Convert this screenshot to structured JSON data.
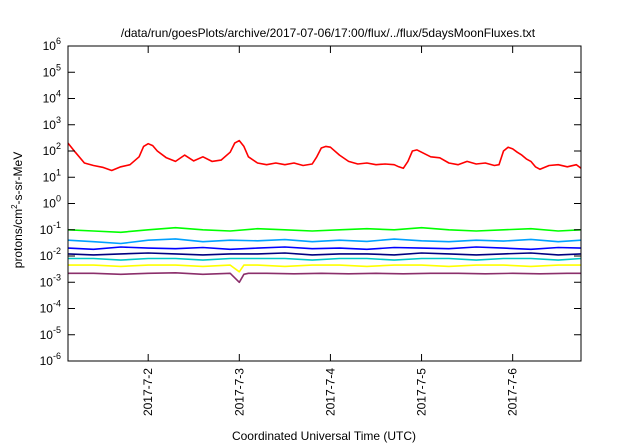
{
  "chart_data": {
    "type": "line",
    "title": "/data/run/goesPlots/archive/2017-07-06/17:00/flux/../flux/5daysMoonFluxes.txt",
    "xlabel": "Coordinated Universal Time (UTC)",
    "ylabel": "protons/cm2-s-sr-MeV",
    "ylabel_parts": {
      "base": "protons/cm",
      "sup": "2",
      "rest": "-s-sr-MeV"
    },
    "y_scale": "log",
    "ylim": [
      "1e-6",
      "1e6"
    ],
    "y_tick_labels": [
      {
        "base": "10",
        "exp": "-6"
      },
      {
        "base": "10",
        "exp": "-5"
      },
      {
        "base": "10",
        "exp": "-4"
      },
      {
        "base": "10",
        "exp": "-3"
      },
      {
        "base": "10",
        "exp": "-2"
      },
      {
        "base": "10",
        "exp": "-1"
      },
      {
        "base": "10",
        "exp": "0"
      },
      {
        "base": "10",
        "exp": "1"
      },
      {
        "base": "10",
        "exp": "2"
      },
      {
        "base": "10",
        "exp": "3"
      },
      {
        "base": "10",
        "exp": "4"
      },
      {
        "base": "10",
        "exp": "5"
      },
      {
        "base": "10",
        "exp": "6"
      }
    ],
    "x_range_days": [
      1.12,
      6.75
    ],
    "x_ticks": [
      {
        "label": "2017-7-2",
        "day": 2
      },
      {
        "label": "2017-7-3",
        "day": 3
      },
      {
        "label": "2017-7-4",
        "day": 4
      },
      {
        "label": "2017-7-5",
        "day": 5
      },
      {
        "label": "2017-7-6",
        "day": 6
      }
    ],
    "grid": false,
    "legend": "none",
    "series": [
      {
        "color": "#ff0000",
        "x": [
          1.12,
          1.2,
          1.3,
          1.4,
          1.5,
          1.6,
          1.7,
          1.8,
          1.9,
          1.95,
          2.0,
          2.05,
          2.1,
          2.2,
          2.3,
          2.4,
          2.5,
          2.6,
          2.7,
          2.8,
          2.9,
          2.95,
          3.0,
          3.05,
          3.1,
          3.2,
          3.3,
          3.4,
          3.5,
          3.6,
          3.7,
          3.8,
          3.85,
          3.9,
          3.95,
          4.0,
          4.1,
          4.2,
          4.3,
          4.4,
          4.5,
          4.6,
          4.7,
          4.75,
          4.8,
          4.85,
          4.9,
          4.95,
          5.0,
          5.1,
          5.2,
          5.3,
          5.4,
          5.5,
          5.6,
          5.7,
          5.8,
          5.85,
          5.9,
          5.95,
          6.0,
          6.05,
          6.1,
          6.15,
          6.2,
          6.25,
          6.3,
          6.4,
          6.5,
          6.6,
          6.7,
          6.75
        ],
        "y": [
          200,
          90,
          35,
          28,
          24,
          18,
          25,
          30,
          60,
          150,
          190,
          160,
          100,
          55,
          40,
          70,
          42,
          60,
          40,
          45,
          90,
          200,
          250,
          150,
          60,
          35,
          30,
          35,
          30,
          35,
          28,
          32,
          60,
          130,
          150,
          140,
          70,
          40,
          32,
          35,
          30,
          32,
          30,
          25,
          22,
          40,
          100,
          110,
          90,
          60,
          55,
          35,
          30,
          40,
          32,
          35,
          28,
          30,
          100,
          140,
          120,
          90,
          70,
          50,
          40,
          25,
          20,
          28,
          30,
          25,
          30,
          22
        ]
      },
      {
        "color": "#00ff00",
        "x": [
          1.12,
          1.4,
          1.7,
          2.0,
          2.3,
          2.6,
          2.9,
          3.2,
          3.5,
          3.8,
          4.1,
          4.4,
          4.7,
          5.0,
          5.3,
          5.6,
          5.9,
          6.2,
          6.5,
          6.75
        ],
        "y": [
          0.1,
          0.09,
          0.08,
          0.1,
          0.12,
          0.1,
          0.09,
          0.11,
          0.1,
          0.09,
          0.1,
          0.11,
          0.1,
          0.12,
          0.1,
          0.09,
          0.1,
          0.11,
          0.09,
          0.1
        ]
      },
      {
        "color": "#00a0ff",
        "x": [
          1.12,
          1.4,
          1.7,
          2.0,
          2.3,
          2.6,
          2.9,
          3.2,
          3.5,
          3.8,
          4.1,
          4.4,
          4.7,
          5.0,
          5.3,
          5.6,
          5.9,
          6.2,
          6.5,
          6.75
        ],
        "y": [
          0.04,
          0.035,
          0.03,
          0.04,
          0.045,
          0.035,
          0.04,
          0.038,
          0.042,
          0.035,
          0.04,
          0.036,
          0.044,
          0.038,
          0.035,
          0.04,
          0.037,
          0.043,
          0.035,
          0.04
        ]
      },
      {
        "color": "#0000ff",
        "x": [
          1.12,
          1.4,
          1.7,
          2.0,
          2.3,
          2.6,
          2.9,
          3.2,
          3.5,
          3.8,
          4.1,
          4.4,
          4.7,
          5.0,
          5.3,
          5.6,
          5.9,
          6.2,
          6.5,
          6.75
        ],
        "y": [
          0.02,
          0.018,
          0.022,
          0.02,
          0.019,
          0.021,
          0.018,
          0.02,
          0.022,
          0.019,
          0.02,
          0.018,
          0.021,
          0.02,
          0.019,
          0.022,
          0.02,
          0.018,
          0.021,
          0.02
        ]
      },
      {
        "color": "#000080",
        "x": [
          1.12,
          1.4,
          1.7,
          2.0,
          2.3,
          2.6,
          2.9,
          3.2,
          3.5,
          3.8,
          4.1,
          4.4,
          4.7,
          5.0,
          5.3,
          5.6,
          5.9,
          6.2,
          6.5,
          6.75
        ],
        "y": [
          0.012,
          0.011,
          0.012,
          0.013,
          0.012,
          0.011,
          0.012,
          0.012,
          0.013,
          0.011,
          0.012,
          0.012,
          0.011,
          0.013,
          0.012,
          0.011,
          0.012,
          0.013,
          0.011,
          0.012
        ]
      },
      {
        "color": "#00c8c8",
        "x": [
          1.12,
          1.4,
          1.7,
          2.0,
          2.3,
          2.6,
          2.9,
          3.2,
          3.5,
          3.8,
          4.1,
          4.4,
          4.7,
          5.0,
          5.3,
          5.6,
          5.9,
          6.2,
          6.5,
          6.75
        ],
        "y": [
          0.008,
          0.008,
          0.007,
          0.008,
          0.008,
          0.007,
          0.008,
          0.008,
          0.008,
          0.007,
          0.008,
          0.008,
          0.007,
          0.008,
          0.008,
          0.007,
          0.008,
          0.008,
          0.007,
          0.008
        ]
      },
      {
        "color": "#ffff00",
        "x": [
          1.12,
          1.4,
          1.7,
          2.0,
          2.3,
          2.6,
          2.9,
          3.0,
          3.05,
          3.2,
          3.5,
          3.8,
          4.1,
          4.4,
          4.7,
          5.0,
          5.3,
          5.6,
          5.9,
          6.2,
          6.5,
          6.75
        ],
        "y": [
          0.0045,
          0.0045,
          0.004,
          0.0045,
          0.0045,
          0.004,
          0.0045,
          0.0025,
          0.0045,
          0.0045,
          0.004,
          0.0045,
          0.0045,
          0.004,
          0.0045,
          0.0045,
          0.004,
          0.0045,
          0.0045,
          0.004,
          0.0045,
          0.0045
        ]
      },
      {
        "color": "#8b2f6b",
        "x": [
          1.12,
          1.4,
          1.7,
          2.0,
          2.3,
          2.6,
          2.9,
          3.0,
          3.05,
          3.1,
          3.3,
          3.6,
          3.9,
          4.2,
          4.5,
          4.8,
          5.1,
          5.4,
          5.7,
          6.0,
          6.3,
          6.6,
          6.75
        ],
        "y": [
          0.0022,
          0.0022,
          0.002,
          0.0022,
          0.0023,
          0.002,
          0.0022,
          0.001,
          0.002,
          0.0022,
          0.0022,
          0.0021,
          0.0022,
          0.0021,
          0.0022,
          0.0021,
          0.0022,
          0.0022,
          0.0021,
          0.0022,
          0.0021,
          0.0022,
          0.0022
        ]
      }
    ]
  }
}
